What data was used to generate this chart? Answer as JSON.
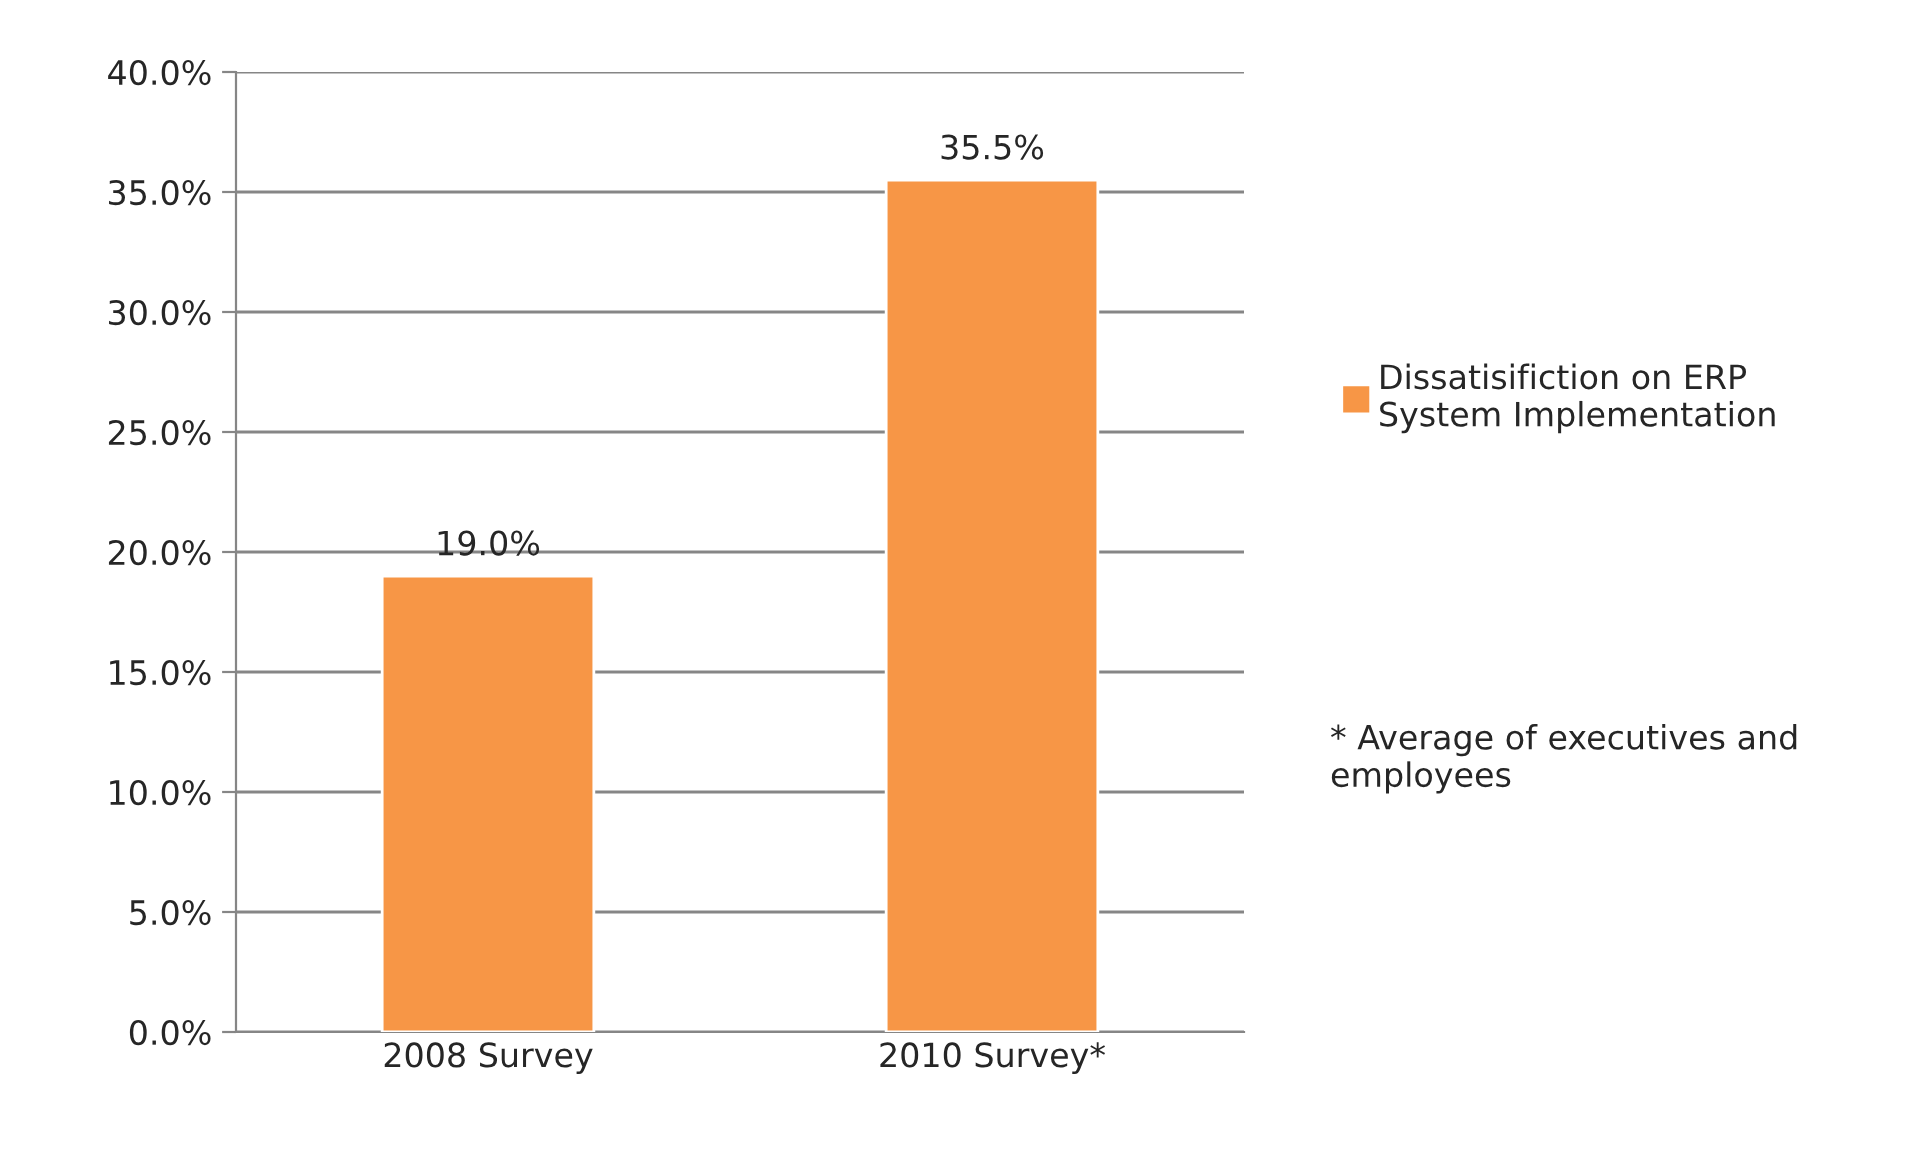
{
  "chart_data": {
    "type": "bar",
    "categories": [
      "2008 Survey",
      "2010 Survey*"
    ],
    "series": [
      {
        "name": "Dissatisifiction on ERP System Implementation",
        "color": "#f79646",
        "values": [
          19.0,
          35.5
        ],
        "value_labels": [
          "19.0%",
          "35.5%"
        ]
      }
    ],
    "ylim": [
      0,
      40
    ],
    "yticks": [
      {
        "value": 0,
        "label": "0.0%"
      },
      {
        "value": 5,
        "label": "5.0%"
      },
      {
        "value": 10,
        "label": "10.0%"
      },
      {
        "value": 15,
        "label": "15.0%"
      },
      {
        "value": 20,
        "label": "20.0%"
      },
      {
        "value": 25,
        "label": "25.0%"
      },
      {
        "value": 30,
        "label": "30.0%"
      },
      {
        "value": 35,
        "label": "35.0%"
      },
      {
        "value": 40,
        "label": "40.0%"
      }
    ],
    "grid": "y",
    "legend": "right",
    "annotations": [
      "* Average of executives and employees"
    ]
  }
}
